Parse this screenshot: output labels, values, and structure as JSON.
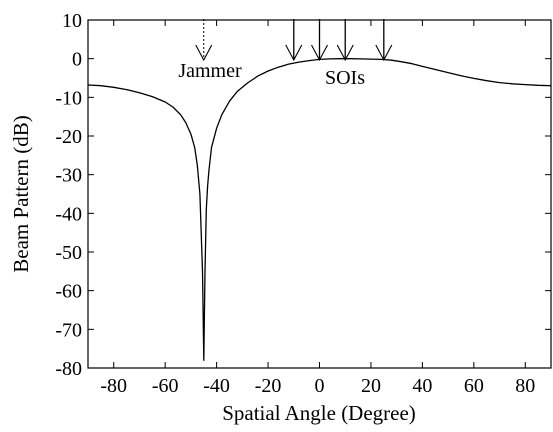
{
  "chart_data": {
    "type": "line",
    "title": "",
    "xlabel": "Spatial Angle (Degree)",
    "ylabel": "Beam Pattern (dB)",
    "xlim": [
      -90,
      90
    ],
    "ylim": [
      -80,
      10
    ],
    "xticks": [
      -80,
      -60,
      -40,
      -20,
      0,
      20,
      40,
      60,
      80
    ],
    "yticks": [
      10,
      0,
      -10,
      -20,
      -30,
      -40,
      -50,
      -60,
      -70,
      -80
    ],
    "grid": false,
    "series": [
      {
        "x": [
          -90,
          -85,
          -80,
          -75,
          -70,
          -65,
          -60,
          -57,
          -54,
          -52,
          -50,
          -48.5,
          -47.5,
          -46.5,
          -45.5,
          -45,
          -44.5,
          -44,
          -43.5,
          -43,
          -42,
          -40,
          -38,
          -35,
          -32,
          -28,
          -24,
          -20,
          -16,
          -12,
          -8,
          -4,
          0,
          4,
          8,
          12,
          16,
          20,
          24,
          28,
          32,
          36,
          40,
          45,
          50,
          55,
          60,
          65,
          70,
          75,
          80,
          85,
          90
        ],
        "y": [
          -6.8,
          -7.0,
          -7.4,
          -8.0,
          -8.8,
          -9.8,
          -11.2,
          -12.5,
          -14.5,
          -16.5,
          -19.5,
          -23,
          -27.5,
          -35,
          -55,
          -78,
          -55,
          -39,
          -33,
          -29,
          -23,
          -18,
          -14.5,
          -11,
          -8.5,
          -6.3,
          -4.5,
          -3.2,
          -2.2,
          -1.4,
          -0.9,
          -0.5,
          -0.2,
          -0.05,
          0.0,
          0.0,
          -0.05,
          -0.1,
          -0.2,
          -0.4,
          -0.8,
          -1.3,
          -2.0,
          -2.8,
          -3.6,
          -4.4,
          -5.1,
          -5.7,
          -6.2,
          -6.5,
          -6.7,
          -6.9,
          -7.0
        ]
      }
    ],
    "annotations": [
      {
        "text": "Jammer",
        "arrow_x": [
          -45
        ],
        "arrow_style": "dotted"
      },
      {
        "text": "SOIs",
        "arrow_x": [
          -10,
          0,
          10,
          25
        ],
        "arrow_style": "solid"
      }
    ]
  }
}
